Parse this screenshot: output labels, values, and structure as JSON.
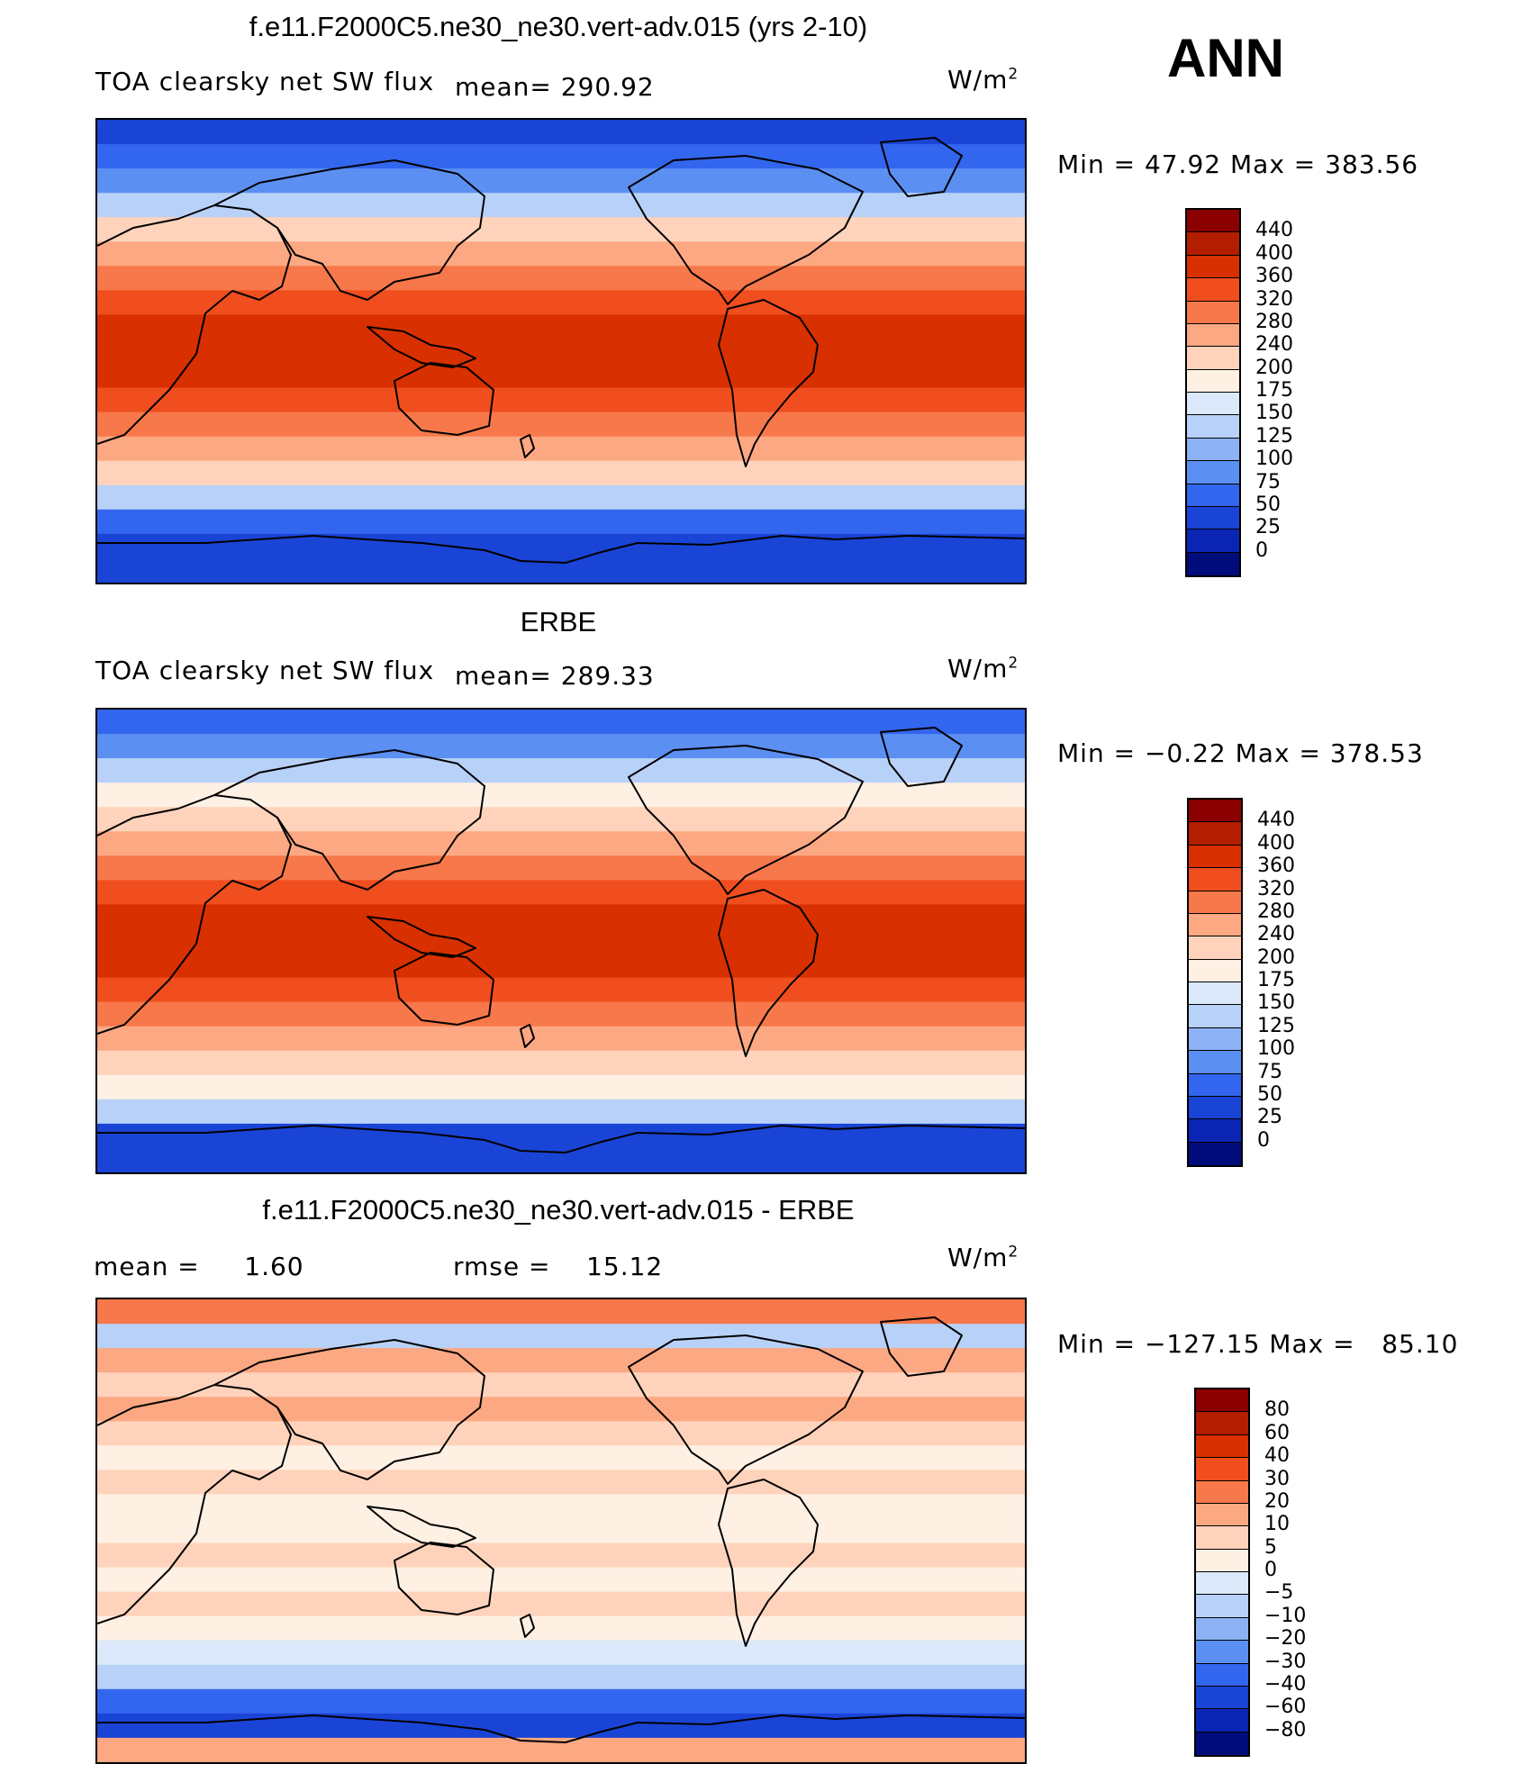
{
  "season": "ANN",
  "panels": [
    {
      "title": "f.e11.F2000C5.ne30_ne30.vert-adv.015 (yrs 2-10)",
      "left_label": "TOA clearsky net SW flux",
      "mean_label": "mean= 290.92",
      "units": "W/m",
      "units_exp": "2",
      "minmax": "Min =   47.92 Max = 383.56",
      "levels": [
        "440",
        "400",
        "360",
        "320",
        "280",
        "240",
        "200",
        "175",
        "150",
        "125",
        "100",
        "75",
        "50",
        "25",
        "0"
      ],
      "colors": [
        "#8b0000",
        "#b41e00",
        "#d83000",
        "#f04e1e",
        "#f7784a",
        "#fca882",
        "#ffd3bb",
        "#fff0e4",
        "#dbe9fb",
        "#b8d1f8",
        "#8cb2f5",
        "#5c8ff2",
        "#3366ee",
        "#1a44d6",
        "#0a25b4",
        "#000c7a"
      ],
      "zonal": [
        "#1a44d6",
        "#3366ee",
        "#5c8ff2",
        "#b8d1f8",
        "#ffd3bb",
        "#fca882",
        "#f7784a",
        "#f04e1e",
        "#d83000",
        "#d83000",
        "#d83000",
        "#f04e1e",
        "#f7784a",
        "#fca882",
        "#ffd3bb",
        "#b8d1f8",
        "#3366ee",
        "#1a44d6",
        "#1a44d6"
      ]
    },
    {
      "title": "ERBE",
      "left_label": "TOA clearsky net SW flux",
      "mean_label": "mean= 289.33",
      "units": "W/m",
      "units_exp": "2",
      "minmax": "Min =  −0.22 Max = 378.53",
      "levels": [
        "440",
        "400",
        "360",
        "320",
        "280",
        "240",
        "200",
        "175",
        "150",
        "125",
        "100",
        "75",
        "50",
        "25",
        "0"
      ],
      "colors": [
        "#8b0000",
        "#b41e00",
        "#d83000",
        "#f04e1e",
        "#f7784a",
        "#fca882",
        "#ffd3bb",
        "#fff0e4",
        "#dbe9fb",
        "#b8d1f8",
        "#8cb2f5",
        "#5c8ff2",
        "#3366ee",
        "#1a44d6",
        "#0a25b4",
        "#000c7a"
      ],
      "zonal": [
        "#3366ee",
        "#5c8ff2",
        "#b8d1f8",
        "#fff0e4",
        "#ffd3bb",
        "#fca882",
        "#f7784a",
        "#f04e1e",
        "#d83000",
        "#d83000",
        "#d83000",
        "#f04e1e",
        "#f7784a",
        "#fca882",
        "#ffd3bb",
        "#fff0e4",
        "#b8d1f8",
        "#1a44d6",
        "#1a44d6"
      ]
    },
    {
      "title": "f.e11.F2000C5.ne30_ne30.vert-adv.015 - ERBE",
      "mean_label": "mean =     1.60",
      "rmse_label": "rmse =    15.12",
      "units": "W/m",
      "units_exp": "2",
      "minmax": "Min = −127.15 Max =   85.10",
      "levels": [
        "80",
        "60",
        "40",
        "30",
        "20",
        "10",
        "5",
        "0",
        "−5",
        "−10",
        "−20",
        "−30",
        "−40",
        "−60",
        "−80"
      ],
      "colors": [
        "#8b0000",
        "#b41e00",
        "#d83000",
        "#f04e1e",
        "#f7784a",
        "#fca882",
        "#ffd3bb",
        "#fff0e4",
        "#dbe9fb",
        "#b8d1f8",
        "#8cb2f5",
        "#5c8ff2",
        "#3366ee",
        "#1a44d6",
        "#0a25b4",
        "#000c7a"
      ],
      "zonal": [
        "#f7784a",
        "#b8d1f8",
        "#fca882",
        "#ffd3bb",
        "#fca882",
        "#ffd3bb",
        "#fff0e4",
        "#ffd3bb",
        "#fff0e4",
        "#fff0e4",
        "#ffd3bb",
        "#fff0e4",
        "#ffd3bb",
        "#fff0e4",
        "#dbe9fb",
        "#b8d1f8",
        "#3366ee",
        "#1a44d6",
        "#fca882"
      ]
    }
  ]
}
